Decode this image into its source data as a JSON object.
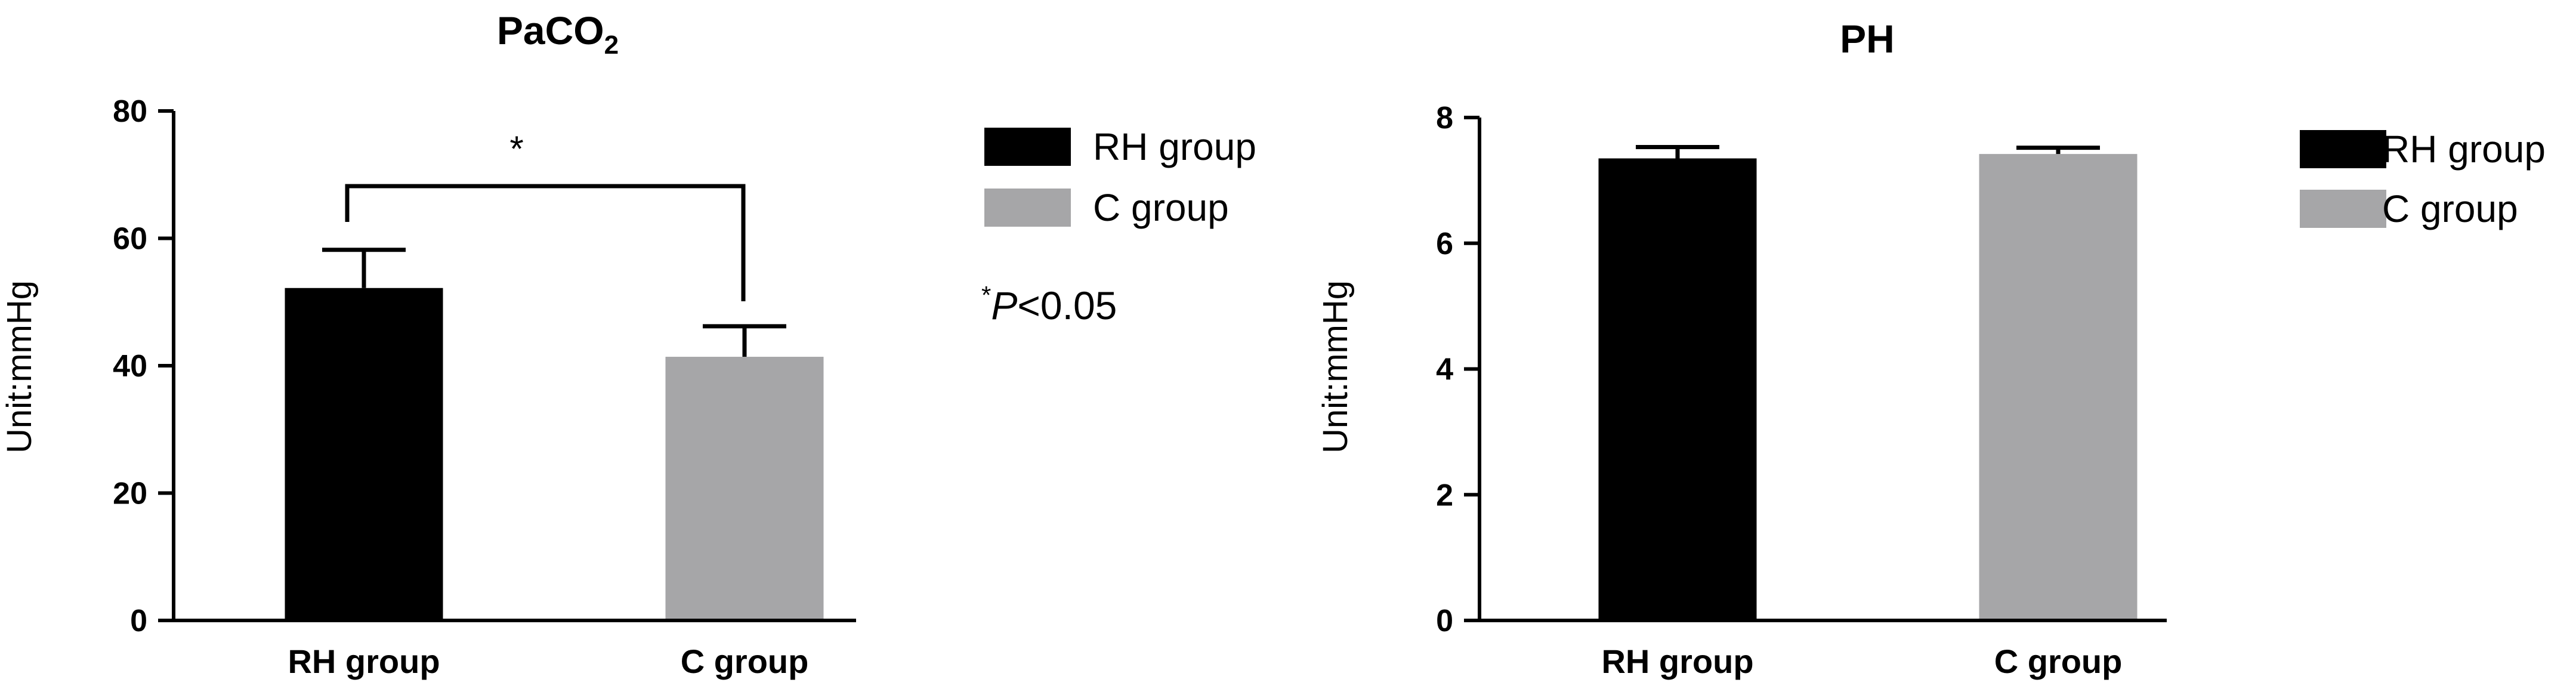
{
  "chart_data": [
    {
      "type": "bar",
      "title": "PaCO2",
      "title_main": "PaCO",
      "title_sub": "2",
      "xlabel": "",
      "ylabel": "Unit:mmHg",
      "ylim": [
        0,
        80
      ],
      "yticks": [
        0,
        20,
        40,
        60,
        80
      ],
      "categories": [
        "RH group",
        "C group"
      ],
      "values": [
        52.2,
        41.4
      ],
      "errors": [
        6.0,
        4.8
      ],
      "colors": [
        "#000000",
        "#a6a6a8"
      ],
      "legend": [
        "RH group",
        "C group"
      ],
      "legend_position": "right",
      "significance": {
        "between": [
          "RH group",
          "C group"
        ],
        "label": "*",
        "note_star": "*",
        "note_text": "P",
        "note_rest": "<0.05"
      }
    },
    {
      "type": "bar",
      "title": "PH",
      "xlabel": "",
      "ylabel": "Unit:mmHg",
      "ylim": [
        0,
        8
      ],
      "yticks": [
        0,
        2,
        4,
        6,
        8
      ],
      "categories": [
        "RH group",
        "C group"
      ],
      "values": [
        7.35,
        7.42
      ],
      "errors": [
        0.18,
        0.1
      ],
      "colors": [
        "#000000",
        "#a6a6a8"
      ],
      "legend": [
        "RH group",
        "C group"
      ],
      "legend_position": "right"
    }
  ]
}
